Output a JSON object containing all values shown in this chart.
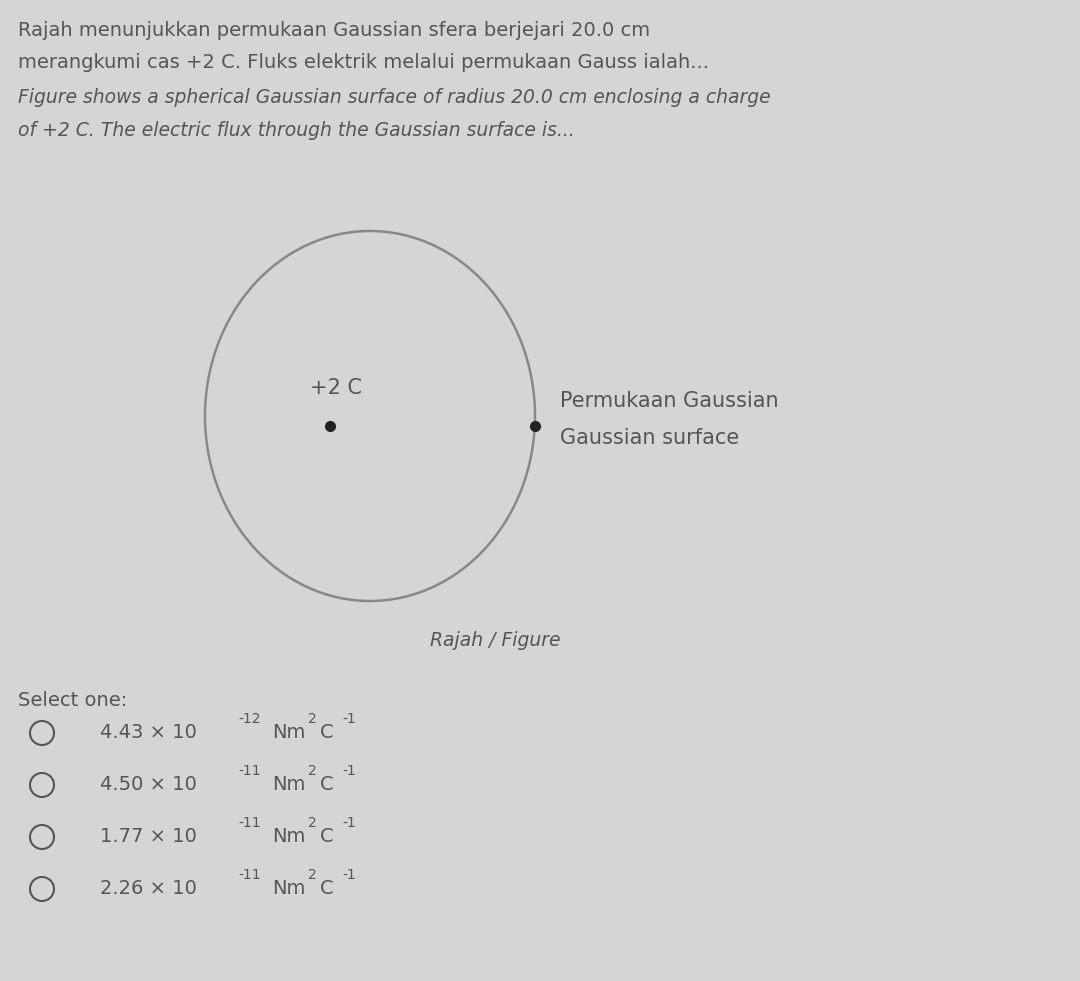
{
  "background_color": "#d5d5d5",
  "title_line1": "Rajah menunjukkan permukaan Gaussian sfera berjejari 20.0 cm",
  "title_line2": "merangkumi cas +2 C. Fluks elektrik melalui permukaan Gauss ialah...",
  "subtitle_line1": "Figure shows a spherical Gaussian surface of radius 20.0 cm enclosing a charge",
  "subtitle_line2": "of +2 C. The electric flux through the Gaussian surface is...",
  "charge_label": "+2 C",
  "label_line1": "Permukaan Gaussian",
  "label_line2": "Gaussian surface",
  "figure_caption": "Rajah / Figure",
  "select_one": "Select one:",
  "vals": [
    "4.43",
    "4.50",
    "1.77",
    "2.26"
  ],
  "exps": [
    "-12",
    "-11",
    "-11",
    "-11"
  ],
  "text_color": "#555555",
  "circle_color": "#888888",
  "dot_color": "#222222",
  "title_fontsize": 14,
  "subtitle_fontsize": 13.5,
  "option_fontsize": 14,
  "sup_fontsize": 10
}
